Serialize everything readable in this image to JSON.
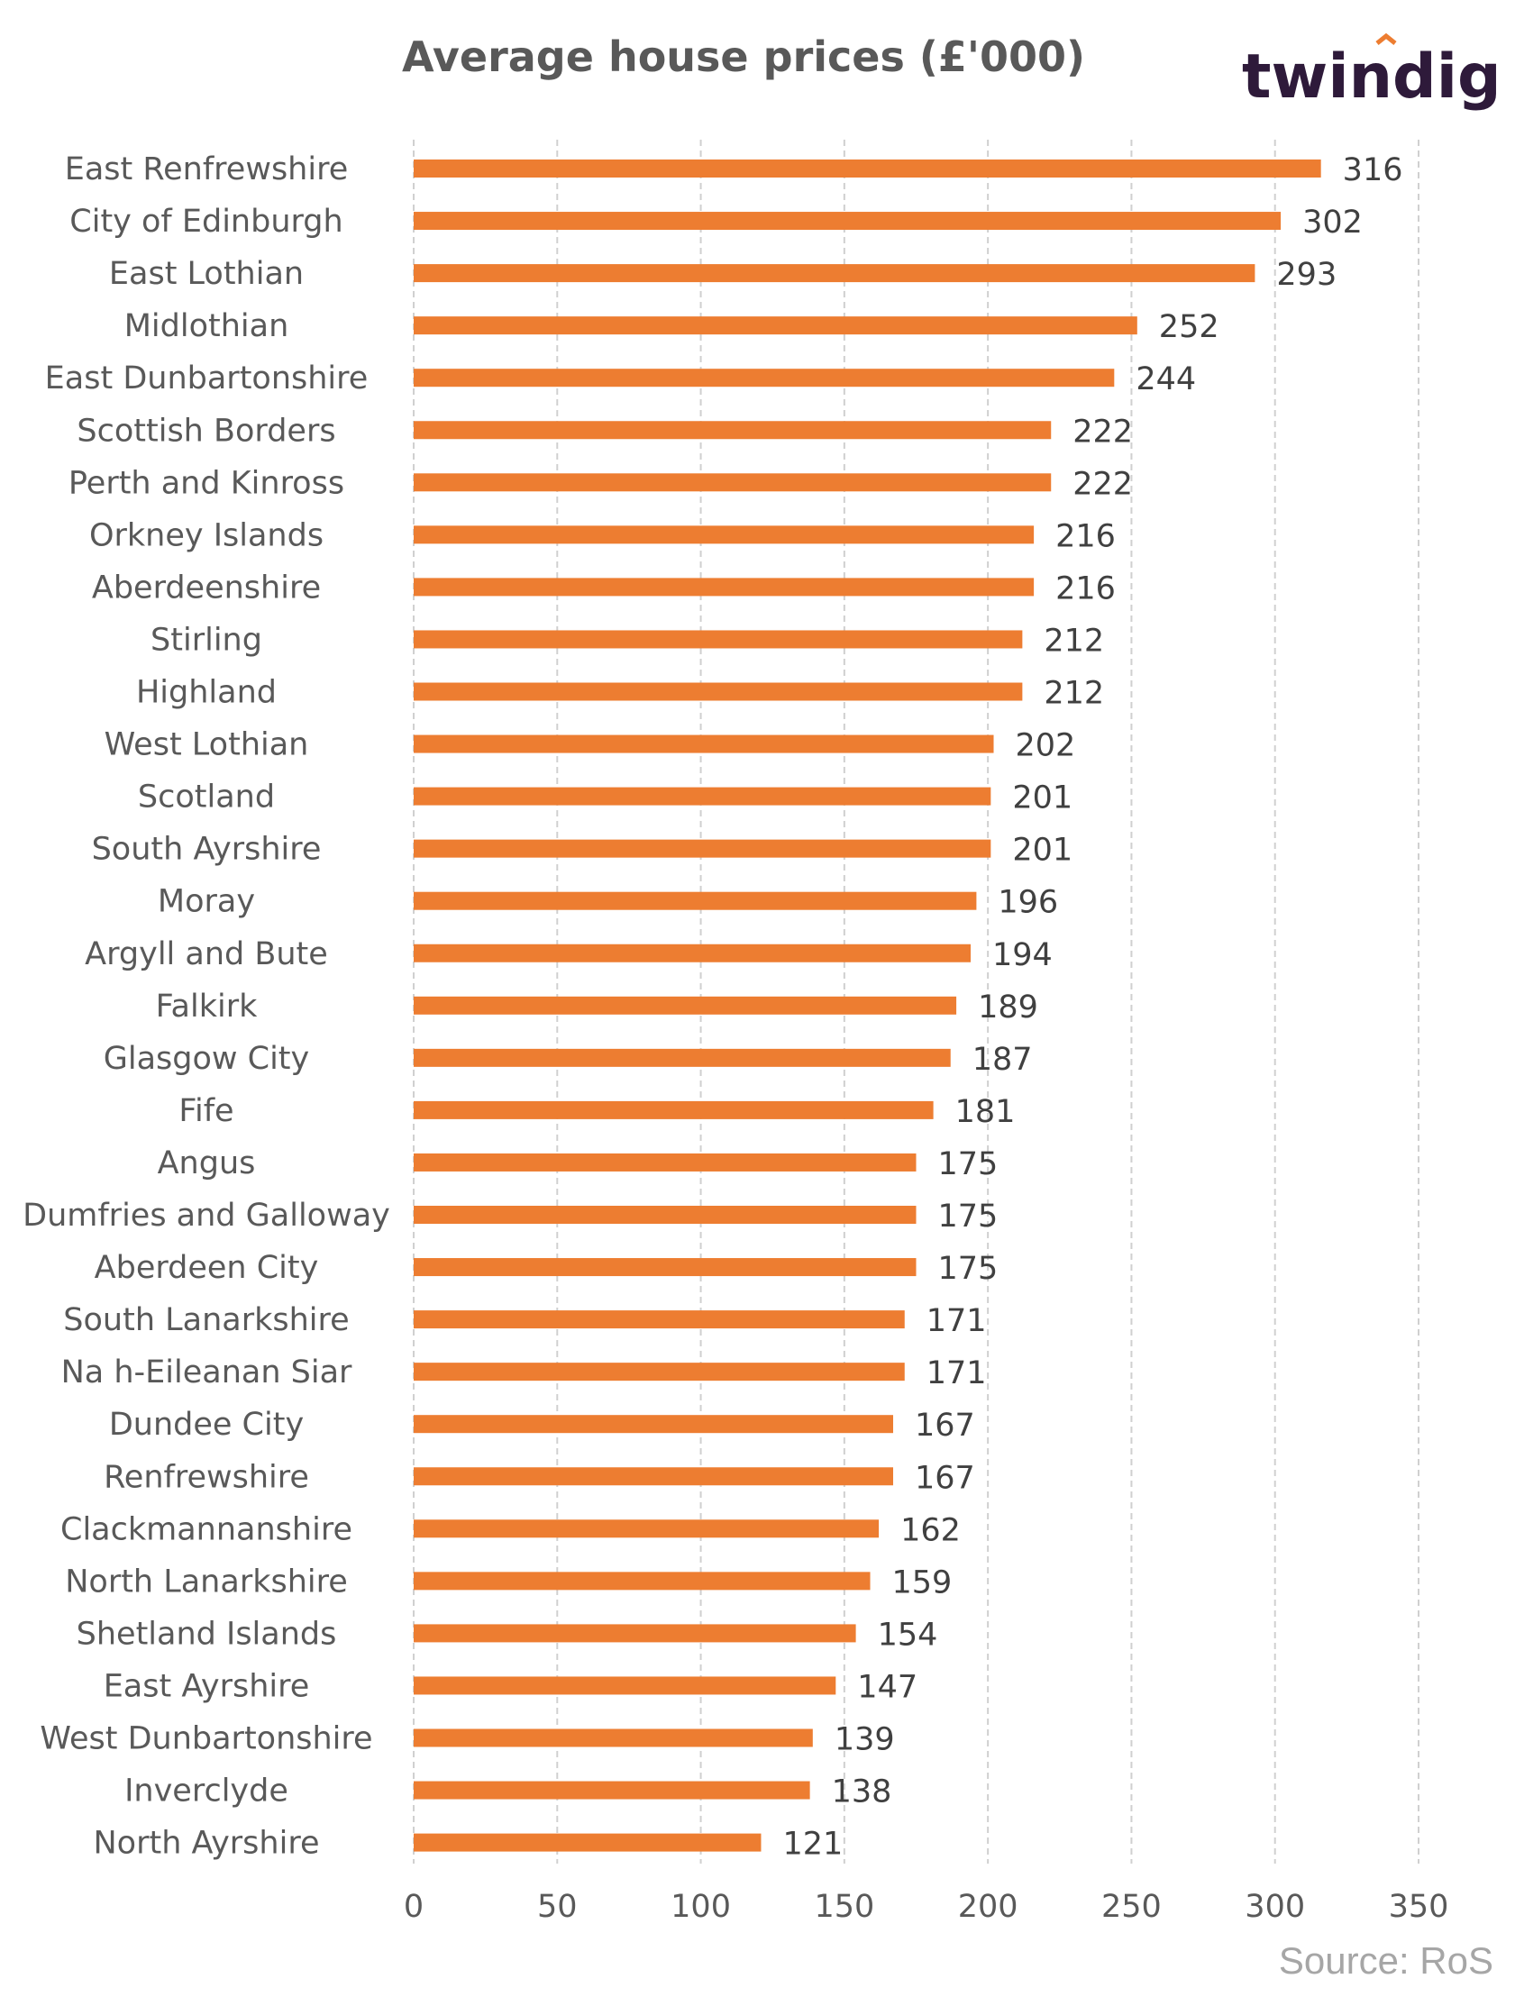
{
  "header": {
    "title": "Average house prices (£'000)",
    "brand": "twindig"
  },
  "footer": {
    "source": "Source: RoS"
  },
  "colors": {
    "bar": "#ED7D31",
    "grid": "#D0D0D0",
    "brand": "#2e1a3a",
    "brand_accent": "#ED7D31"
  },
  "chart_data": {
    "type": "bar",
    "orientation": "horizontal",
    "title": "Average house prices (£'000)",
    "xlabel": "",
    "ylabel": "",
    "xlim": [
      0,
      350
    ],
    "xticks": [
      0,
      50,
      100,
      150,
      200,
      250,
      300,
      350
    ],
    "grid": "vertical-dashed",
    "legend": "none",
    "categories": [
      "East Renfrewshire",
      "City of Edinburgh",
      "East Lothian",
      "Midlothian",
      "East Dunbartonshire",
      "Scottish Borders",
      "Perth and Kinross",
      "Orkney Islands",
      "Aberdeenshire",
      "Stirling",
      "Highland",
      "West Lothian",
      "Scotland",
      "South Ayrshire",
      "Moray",
      "Argyll and Bute",
      "Falkirk",
      "Glasgow City",
      "Fife",
      "Angus",
      "Dumfries and Galloway",
      "Aberdeen City",
      "South Lanarkshire",
      "Na h-Eileanan Siar",
      "Dundee City",
      "Renfrewshire",
      "Clackmannanshire",
      "North Lanarkshire",
      "Shetland Islands",
      "East Ayrshire",
      "West Dunbartonshire",
      "Inverclyde",
      "North Ayrshire"
    ],
    "values": [
      316,
      302,
      293,
      252,
      244,
      222,
      222,
      216,
      216,
      212,
      212,
      202,
      201,
      201,
      196,
      194,
      189,
      187,
      181,
      175,
      175,
      175,
      171,
      171,
      167,
      167,
      162,
      159,
      154,
      147,
      139,
      138,
      121
    ]
  }
}
